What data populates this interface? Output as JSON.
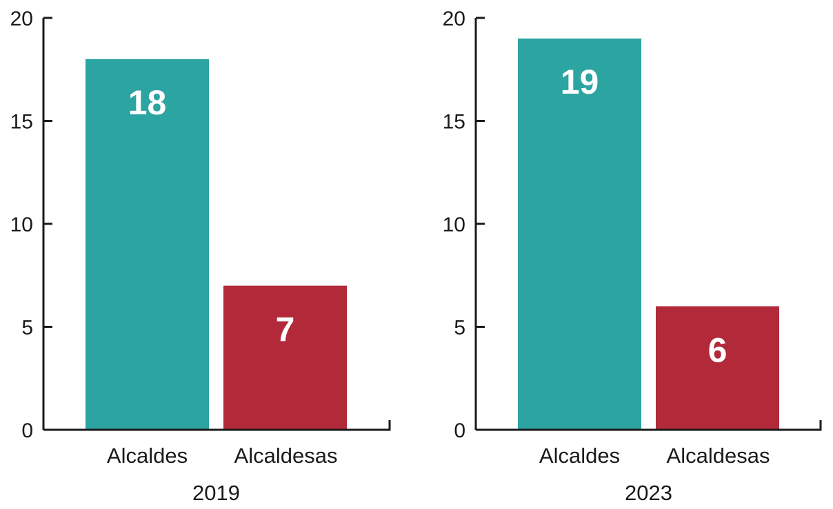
{
  "chart_data": [
    {
      "type": "bar",
      "group_label": "2019",
      "categories": [
        "Alcaldes",
        "Alcaldesas"
      ],
      "values": [
        18,
        7
      ],
      "colors": [
        "#2ca4a1",
        "#b22a3a"
      ],
      "ylim": [
        0,
        20
      ],
      "yticks": [
        "0",
        "5",
        "10",
        "15",
        "20"
      ],
      "grid": false
    },
    {
      "type": "bar",
      "group_label": "2023",
      "categories": [
        "Alcaldes",
        "Alcaldesas"
      ],
      "values": [
        19,
        6
      ],
      "colors": [
        "#2ca4a1",
        "#b22a3a"
      ],
      "ylim": [
        0,
        20
      ],
      "yticks": [
        "0",
        "5",
        "10",
        "15",
        "20"
      ],
      "grid": false
    }
  ]
}
